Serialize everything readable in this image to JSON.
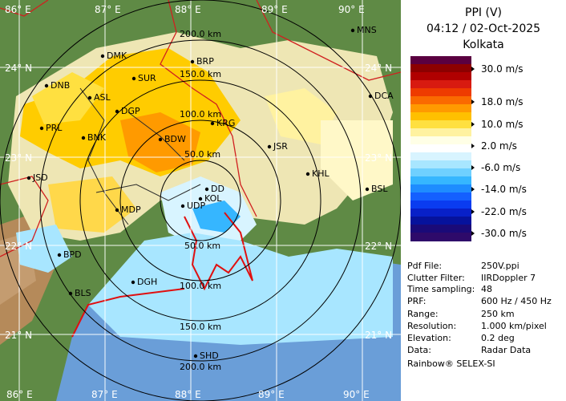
{
  "panel": {
    "product": "PPI (V)",
    "datetime": "04:12 / 02-Oct-2025",
    "station": "Kolkata",
    "scale": [
      {
        "label": "30.0 m/s"
      },
      {
        "label": "18.0 m/s"
      },
      {
        "label": "10.0 m/s"
      },
      {
        "label": "2.0 m/s"
      },
      {
        "label": "-6.0 m/s"
      },
      {
        "label": "-14.0 m/s"
      },
      {
        "label": "-22.0 m/s"
      },
      {
        "label": "-30.0 m/s"
      }
    ],
    "colors": [
      "#5a0040",
      "#8c0000",
      "#b00000",
      "#d81a10",
      "#ee3b00",
      "#fa6a00",
      "#ff9a00",
      "#ffc000",
      "#ffe040",
      "#fff2a0",
      "#ffffe6",
      "#ffffff",
      "#d8f4ff",
      "#a8e6ff",
      "#6fd0ff",
      "#36b6ff",
      "#1e8cff",
      "#1460ff",
      "#0a3cf0",
      "#0820c8",
      "#06129c",
      "#1a0a78",
      "#2e0a6a"
    ],
    "meta": [
      {
        "key": "Pdf File:",
        "value": "250V.ppi"
      },
      {
        "key": "Clutter Filter:",
        "value": "IIRDoppler 7"
      },
      {
        "key": "Time sampling:",
        "value": "48"
      },
      {
        "key": "PRF:",
        "value": "600 Hz / 450 Hz"
      },
      {
        "key": "Range:",
        "value": "250 km"
      },
      {
        "key": "Resolution:",
        "value": "1.000 km/pixel"
      },
      {
        "key": "Elevation:",
        "value": "0.2 deg"
      },
      {
        "key": "Data:",
        "value": "Radar Data"
      }
    ],
    "footer": "Rainbow® SELEX-SI"
  },
  "map": {
    "lon_labels": [
      "86° E",
      "87° E",
      "88° E",
      "89° E",
      "90° E"
    ],
    "lat_labels": [
      "24° N",
      "23° N",
      "22° N",
      "21° N"
    ],
    "range_labels": [
      "50.0 km",
      "100.0 km",
      "150.0 km",
      "200.0 km"
    ],
    "range_labels_south": [
      "50.0 km",
      "100.0 km",
      "150.0 km",
      "200.0 km"
    ],
    "stations": [
      "MNS",
      "DMK",
      "BRP",
      "DNB",
      "SUR",
      "ASL",
      "DGP",
      "DCA",
      "PRL",
      "BNK",
      "BDW",
      "KRG",
      "JSR",
      "JSD",
      "KHL",
      "BSL",
      "MDP",
      "UDP",
      "DD",
      "BPD",
      "DGH",
      "BLS",
      "SHD",
      "KOL"
    ]
  }
}
